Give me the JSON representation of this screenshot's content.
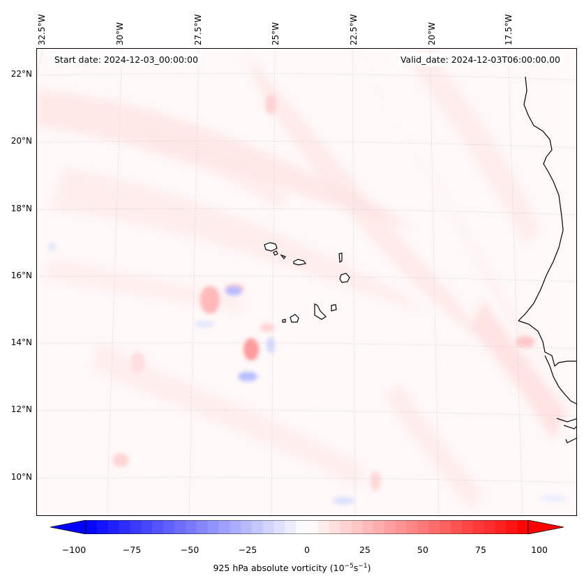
{
  "map": {
    "start_date": "Start date: 2024-12-03_00:00:00",
    "valid_date": "Valid_date: 2024-12-03T06:00:00.00",
    "lon_labels": [
      "32.5°W",
      "30°W",
      "27.5°W",
      "25°W",
      "22.5°W",
      "20°W",
      "17.5°W"
    ],
    "lat_labels": [
      "22°N",
      "20°N",
      "18°N",
      "16°N",
      "14°N",
      "12°N",
      "10°N"
    ],
    "features": [
      "Cape Verde islands",
      "West African coastline"
    ]
  },
  "colorbar": {
    "ticks": [
      "−100",
      "−75",
      "−50",
      "−25",
      "0",
      "25",
      "50",
      "75",
      "100"
    ],
    "label": "925 hPa absolute vorticity (10",
    "label_exp1": "−5",
    "label_mid": "s",
    "label_exp2": "−1",
    "label_end": ")",
    "colors": {
      "min": "#0000ff",
      "mid": "#ffffff",
      "max": "#ff0000"
    },
    "range": [
      -100,
      100
    ],
    "extend": "both"
  }
}
